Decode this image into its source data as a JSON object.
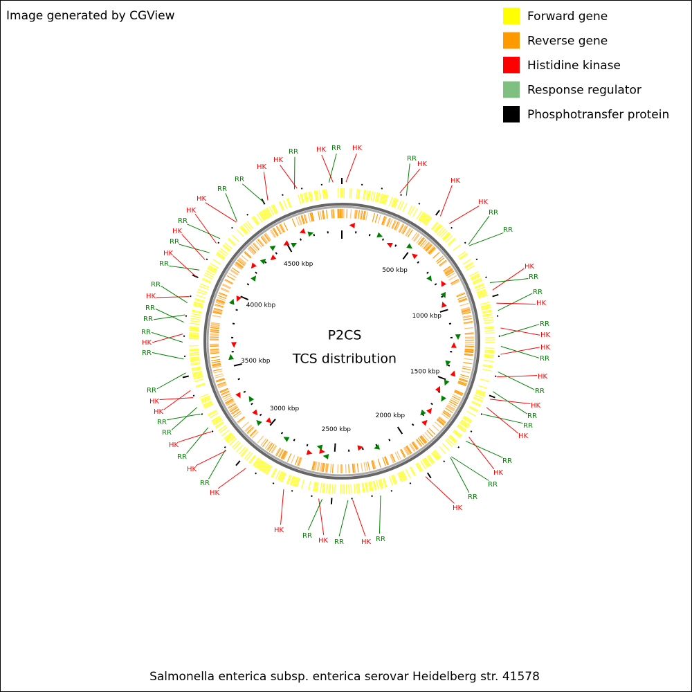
{
  "header": {
    "note": "Image generated by CGView"
  },
  "legend": [
    {
      "label": "Forward gene",
      "color": "#ffff00"
    },
    {
      "label": "Reverse gene",
      "color": "#ff9900"
    },
    {
      "label": "Histidine kinase",
      "color": "#ff0000"
    },
    {
      "label": "Response regulator",
      "color": "#7fbf7f"
    },
    {
      "label": "Phosphotransfer protein",
      "color": "#000000"
    }
  ],
  "center": {
    "title": "P2CS",
    "subtitle": "TCS distribution"
  },
  "scale_labels": [
    "500 kbp",
    "1000 kbp",
    "1500 kbp",
    "2000 kbp",
    "2500 kbp",
    "3000 kbp",
    "3500 kbp",
    "4000 kbp",
    "4500 kbp"
  ],
  "feature_labels": [
    "HK",
    "RR",
    "HK",
    "HK",
    "HK",
    "RR",
    "RR",
    "HK",
    "RR",
    "RR",
    "HK",
    "RR",
    "HK",
    "HK",
    "RR",
    "HK",
    "RR",
    "HK",
    "RR",
    "RR",
    "HK",
    "RR",
    "HK",
    "RR",
    "RR",
    "HK",
    "RR",
    "HK",
    "RR",
    "HK",
    "RR",
    "HK",
    "HK",
    "RR",
    "HK",
    "RR",
    "HK",
    "RR",
    "RR",
    "HK",
    "HK",
    "RR",
    "RR",
    "HK",
    "RR",
    "RR",
    "RR",
    "HK",
    "RR",
    "RR",
    "HK",
    "RR",
    "HK",
    "RR",
    "HK",
    "HK",
    "RR",
    "RR",
    "HK",
    "HK",
    "RR",
    "HK",
    "RR"
  ],
  "caption": "Salmonella enterica subsp. enterica serovar Heidelberg str. 41578"
}
